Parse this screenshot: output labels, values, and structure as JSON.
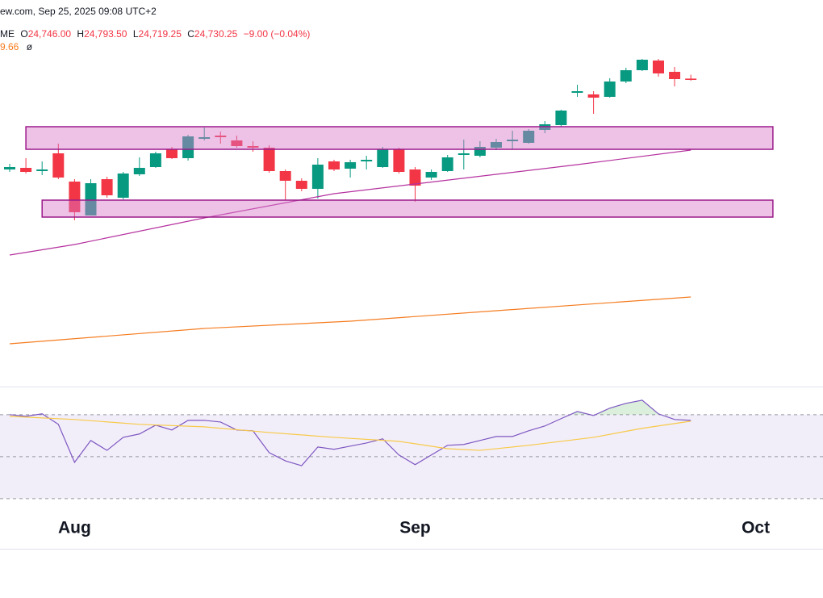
{
  "header": {
    "source": "ew.com, Sep 25, 2025 09:08 UTC+2",
    "symbol": "ME",
    "ohlc": [
      {
        "key": "O",
        "value": "24,746.00"
      },
      {
        "key": "H",
        "value": "24,793.50"
      },
      {
        "key": "L",
        "value": "24,719.25"
      },
      {
        "key": "C",
        "value": "24,730.25"
      }
    ],
    "change": "−9.00 (−0.04%)",
    "indicator": "9.66",
    "indicator_flag": "ø"
  },
  "chart_data": [
    {
      "type": "candlestick",
      "categories": [
        null,
        null,
        null,
        null,
        "Aug",
        null,
        null,
        null,
        null,
        null,
        null,
        null,
        null,
        null,
        null,
        null,
        null,
        null,
        null,
        null,
        null,
        null,
        null,
        null,
        null,
        "Sep",
        null,
        null,
        null,
        null,
        null,
        null,
        null,
        null,
        null,
        null,
        null,
        null,
        null,
        null,
        null,
        null,
        null,
        null,
        null,
        null,
        "Oct"
      ],
      "open": [
        23620,
        23640,
        23600,
        23820,
        23470,
        23050,
        23500,
        23270,
        23560,
        23650,
        23870,
        23760,
        24000,
        24040,
        23980,
        23910,
        23890,
        23600,
        23480,
        23380,
        23720,
        23630,
        23720,
        23650,
        23870,
        23620,
        23520,
        23600,
        23800,
        23790,
        23890,
        23970,
        23950,
        24110,
        24170,
        24570,
        24550,
        24520,
        24710,
        24850,
        24970,
        24830,
        24746,
        null,
        null,
        null,
        null
      ],
      "high": [
        23690,
        23760,
        23720,
        23940,
        23500,
        23500,
        23530,
        23590,
        23770,
        23840,
        23900,
        24050,
        24140,
        24090,
        24040,
        23970,
        23920,
        23620,
        23510,
        23760,
        23740,
        23740,
        23790,
        23900,
        23890,
        23650,
        23620,
        23800,
        23990,
        23970,
        24000,
        24100,
        24120,
        24220,
        24360,
        24670,
        24590,
        24750,
        24880,
        24990,
        24990,
        24890,
        24793.5,
        null,
        null,
        null,
        null
      ],
      "low": [
        23590,
        23570,
        23550,
        23500,
        22990,
        23050,
        23270,
        23250,
        23540,
        23640,
        23750,
        23730,
        23980,
        23940,
        23890,
        23840,
        23580,
        23240,
        23350,
        23260,
        23600,
        23520,
        23620,
        23640,
        23570,
        23220,
        23490,
        23590,
        23620,
        23770,
        23860,
        23870,
        23940,
        24070,
        24150,
        24520,
        24310,
        24510,
        24690,
        24840,
        24770,
        24650,
        24719.25,
        null,
        null,
        null,
        null
      ],
      "close": [
        23650,
        23590,
        23620,
        23520,
        23090,
        23450,
        23300,
        23570,
        23640,
        23820,
        23760,
        24030,
        24020,
        24020,
        23910,
        23890,
        23600,
        23480,
        23380,
        23680,
        23620,
        23710,
        23740,
        23870,
        23590,
        23420,
        23590,
        23770,
        23820,
        23900,
        23960,
        23990,
        24100,
        24180,
        24350,
        24590,
        24510,
        24710,
        24850,
        24980,
        24810,
        24740,
        24730.25,
        null,
        null,
        null,
        null
      ],
      "up_color": "#089981",
      "down_color": "#f23645",
      "ylim": [
        21020,
        25420
      ],
      "series": [
        {
          "color": "#b5319f",
          "x": [
            0,
            4,
            12,
            20,
            25,
            30,
            35,
            42
          ],
          "values": [
            22560,
            22690,
            23020,
            23320,
            23440,
            23560,
            23680,
            23860
          ]
        },
        {
          "color": "#f57c20",
          "x": [
            0,
            12,
            21,
            30,
            42
          ],
          "values": [
            21460,
            21650,
            21740,
            21870,
            22040
          ]
        }
      ],
      "zones": [
        {
          "x": [
            1,
            47.06
          ],
          "y": [
            23870,
            24150
          ]
        },
        {
          "x": [
            2,
            47.06
          ],
          "y": [
            23030,
            23240
          ]
        }
      ]
    },
    {
      "type": "line",
      "ylim": [
        21.5,
        83
      ],
      "levels": [
        70,
        50,
        30
      ],
      "series": [
        {
          "color": "#7e57c2",
          "x": [
            0,
            1,
            2,
            3,
            4,
            5,
            6,
            7,
            8,
            9,
            10,
            11,
            12,
            13,
            14,
            15,
            16,
            17,
            18,
            19,
            20,
            21,
            22,
            23,
            24,
            25,
            26,
            27,
            28,
            29,
            30,
            31,
            32,
            33,
            34,
            35,
            36,
            37,
            38,
            39,
            40,
            41,
            42
          ],
          "values": [
            70,
            69.2,
            70.4,
            65.4,
            47.3,
            57.7,
            53,
            59.2,
            60.8,
            65,
            62.7,
            67.3,
            67.3,
            66.5,
            62.7,
            62.3,
            51.9,
            48,
            45.7,
            54.6,
            53.5,
            55,
            56.5,
            58.5,
            50.8,
            46.2,
            50.8,
            55.4,
            55.8,
            57.7,
            59.6,
            59.6,
            62.3,
            64.6,
            68.1,
            71.5,
            69.6,
            73.1,
            75.4,
            76.9,
            70.4,
            67.7,
            67.3
          ]
        },
        {
          "color": "#f7c948",
          "x": [
            0,
            4,
            8,
            12,
            16,
            20,
            24,
            27,
            29,
            32,
            36,
            39,
            42
          ],
          "values": [
            69.2,
            67.7,
            65.4,
            64.2,
            61.5,
            59.2,
            57.3,
            53.8,
            53,
            55.4,
            59.2,
            63.5,
            66.9
          ]
        }
      ]
    }
  ]
}
